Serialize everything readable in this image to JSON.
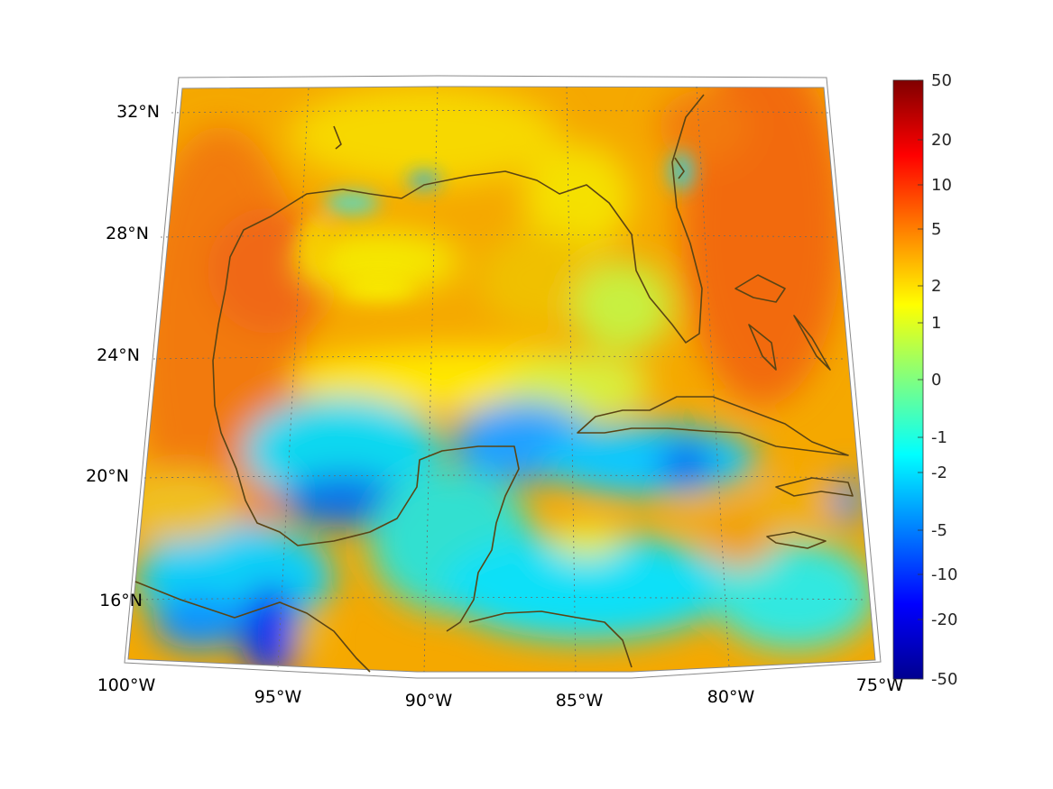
{
  "map": {
    "lon_range": [
      -100,
      -75
    ],
    "lat_range": [
      14,
      33
    ],
    "lon_ticks": [
      {
        "value": -100,
        "label": "100°W"
      },
      {
        "value": -95,
        "label": "95°W"
      },
      {
        "value": -90,
        "label": "90°W"
      },
      {
        "value": -85,
        "label": "85°W"
      },
      {
        "value": -80,
        "label": "80°W"
      },
      {
        "value": -75,
        "label": "75°W"
      }
    ],
    "lat_ticks": [
      {
        "value": 16,
        "label": "16°N"
      },
      {
        "value": 20,
        "label": "20°N"
      },
      {
        "value": 24,
        "label": "24°N"
      },
      {
        "value": 28,
        "label": "28°N"
      },
      {
        "value": 32,
        "label": "32°N"
      }
    ],
    "coastline_color": "#5a4414",
    "grid": "dotted",
    "projection": "conic"
  },
  "colorbar": {
    "colormap": "jet",
    "placement": "right",
    "ticks": [
      "50",
      "20",
      "10",
      "5",
      "2",
      "1",
      "0",
      "-1",
      "-2",
      "-5",
      "-10",
      "-20",
      "-50"
    ],
    "colors": [
      "#00008f",
      "#0000ff",
      "#0080ff",
      "#00ffff",
      "#80ff80",
      "#ffff00",
      "#ff8000",
      "#ff0000",
      "#800000"
    ]
  }
}
